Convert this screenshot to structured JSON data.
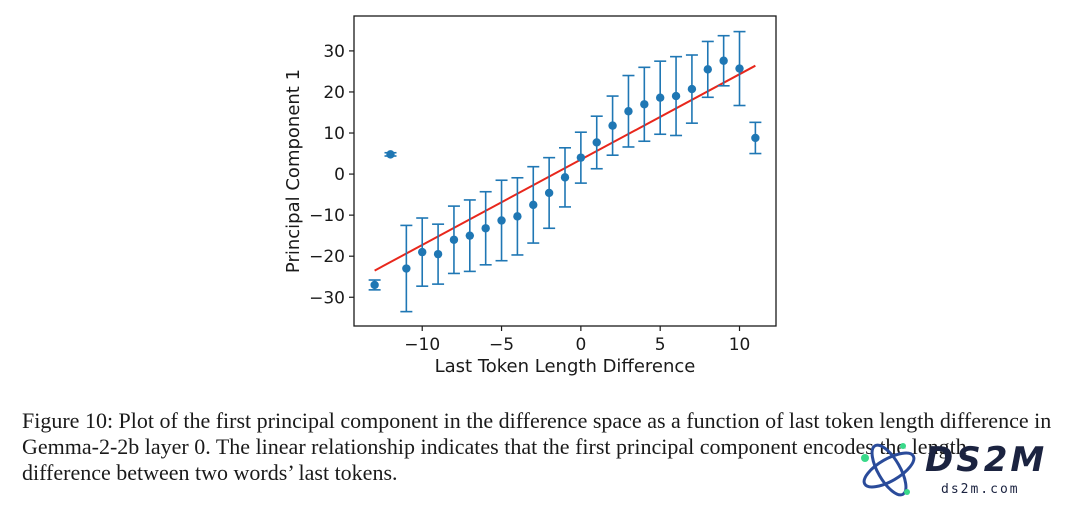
{
  "chart_data": {
    "type": "scatter",
    "xlabel": "Last Token Length Difference",
    "ylabel": "Principal Component 1",
    "xlim": [
      -14.3,
      12.3
    ],
    "ylim": [
      -37,
      38.5
    ],
    "x_ticks": [
      -10,
      -5,
      0,
      5,
      10
    ],
    "y_ticks": [
      -30,
      -20,
      -10,
      0,
      10,
      20,
      30
    ],
    "points": [
      {
        "x": -13,
        "y": -27,
        "err": 1.2
      },
      {
        "x": -12,
        "y": 4.8,
        "err": 0.4
      },
      {
        "x": -11,
        "y": -23,
        "err": 10.5
      },
      {
        "x": -10,
        "y": -19,
        "err": 8.3
      },
      {
        "x": -9,
        "y": -19.5,
        "err": 7.3
      },
      {
        "x": -8,
        "y": -16,
        "err": 8.2
      },
      {
        "x": -7,
        "y": -15,
        "err": 8.7
      },
      {
        "x": -6,
        "y": -13.2,
        "err": 8.9
      },
      {
        "x": -5,
        "y": -11.3,
        "err": 9.8
      },
      {
        "x": -4,
        "y": -10.3,
        "err": 9.4
      },
      {
        "x": -3,
        "y": -7.5,
        "err": 9.3
      },
      {
        "x": -2,
        "y": -4.6,
        "err": 8.6
      },
      {
        "x": -1,
        "y": -0.8,
        "err": 7.2
      },
      {
        "x": 0,
        "y": 4,
        "err": 6.2
      },
      {
        "x": 1,
        "y": 7.7,
        "err": 6.4
      },
      {
        "x": 2,
        "y": 11.8,
        "err": 7.2
      },
      {
        "x": 3,
        "y": 15.3,
        "err": 8.7
      },
      {
        "x": 4,
        "y": 17,
        "err": 9
      },
      {
        "x": 5,
        "y": 18.6,
        "err": 8.9
      },
      {
        "x": 6,
        "y": 19,
        "err": 9.6
      },
      {
        "x": 7,
        "y": 20.7,
        "err": 8.3
      },
      {
        "x": 8,
        "y": 25.5,
        "err": 6.8
      },
      {
        "x": 9,
        "y": 27.6,
        "err": 6.1
      },
      {
        "x": 10,
        "y": 25.7,
        "err": 9
      },
      {
        "x": 11,
        "y": 8.8,
        "err": 3.8
      }
    ],
    "fit_line": {
      "x": [
        -13,
        11
      ],
      "y": [
        -23.5,
        26.4
      ]
    },
    "grid": false,
    "colors": {
      "points": "#1f77b4",
      "fit": "#e8271c",
      "axes": "#1a1a1a"
    }
  },
  "caption": "Figure 10: Plot of the first principal component in the difference space as a function of last token length difference in Gemma-2-2b layer 0. The linear relationship indicates that the first principal component encodes the length difference between two words’ last tokens.",
  "watermark": {
    "brand": "DS2M",
    "site": "ds2m.com",
    "colors": {
      "text": "#1b2340",
      "orbit": "#2a4b9a",
      "dot": "#39d98a"
    }
  }
}
